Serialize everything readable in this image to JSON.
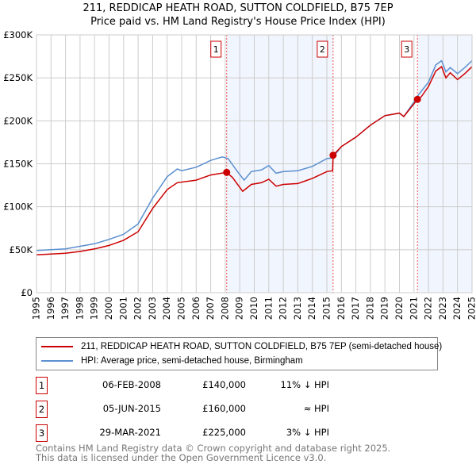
{
  "title": "211, REDDICAP HEATH ROAD, SUTTON COLDFIELD, B75 7EP",
  "subtitle": "Price paid vs. HM Land Registry's House Price Index (HPI)",
  "chart_data": {
    "type": "line",
    "xlim": [
      1995,
      2025
    ],
    "ylim": [
      0,
      300000
    ],
    "x_ticks": [
      "1995",
      "1996",
      "1997",
      "1998",
      "1999",
      "2000",
      "2001",
      "2002",
      "2003",
      "2004",
      "2005",
      "2006",
      "2007",
      "2008",
      "2009",
      "2010",
      "2011",
      "2012",
      "2013",
      "2014",
      "2015",
      "2016",
      "2017",
      "2018",
      "2019",
      "2020",
      "2021",
      "2022",
      "2023",
      "2024",
      "2025"
    ],
    "y_ticks": [
      {
        "v": 0,
        "label": "£0"
      },
      {
        "v": 50000,
        "label": "£50K"
      },
      {
        "v": 100000,
        "label": "£100K"
      },
      {
        "v": 150000,
        "label": "£150K"
      },
      {
        "v": 200000,
        "label": "£200K"
      },
      {
        "v": 250000,
        "label": "£250K"
      },
      {
        "v": 300000,
        "label": "£300K"
      }
    ],
    "grid": true,
    "series": [
      {
        "name": "211, REDDICAP HEATH ROAD, SUTTON COLDFIELD, B75 7EP (semi-detached house)",
        "color": "#cc0000",
        "x": [
          1995,
          1996,
          1997,
          1998,
          1999,
          2000,
          2001,
          2002,
          2003,
          2004,
          2004.7,
          2006,
          2007,
          2008.1,
          2008.5,
          2009.2,
          2009.8,
          2010.5,
          2011,
          2011.5,
          2012,
          2013,
          2014,
          2015,
          2015.4,
          2015.43,
          2016,
          2017,
          2018,
          2019,
          2020,
          2020.3,
          2021.24,
          2021.5,
          2022,
          2022.5,
          2022.9,
          2023.2,
          2023.5,
          2024,
          2024.5,
          2025
        ],
        "y": [
          44000,
          45000,
          46000,
          48000,
          51000,
          55000,
          61000,
          71000,
          98000,
          120000,
          128000,
          131000,
          137000,
          140000,
          134000,
          118000,
          126000,
          128000,
          132000,
          124000,
          126000,
          127000,
          133000,
          141000,
          142000,
          160000,
          170000,
          181000,
          195000,
          206000,
          209000,
          205000,
          225000,
          228000,
          240000,
          258000,
          263000,
          250000,
          256000,
          248000,
          255000,
          263000
        ]
      },
      {
        "name": "HPI: Average price, semi-detached house, Birmingham",
        "color": "#5b8fd0",
        "x": [
          1995,
          1996,
          1997,
          1998,
          1999,
          2000,
          2001,
          2002,
          2003,
          2004,
          2004.7,
          2005,
          2006,
          2007,
          2007.8,
          2008.2,
          2008.8,
          2009.3,
          2009.8,
          2010.5,
          2011,
          2011.5,
          2012,
          2013,
          2014,
          2015,
          2015.4,
          2016,
          2017,
          2018,
          2019,
          2020,
          2020.3,
          2021,
          2021.3,
          2022,
          2022.5,
          2022.9,
          2023.2,
          2023.5,
          2024,
          2024.5,
          2025
        ],
        "y": [
          49000,
          50000,
          51000,
          54000,
          57000,
          62000,
          68000,
          80000,
          110000,
          135000,
          144000,
          142000,
          146000,
          154000,
          158000,
          156000,
          142000,
          131000,
          141000,
          143000,
          148000,
          139000,
          141000,
          142000,
          147000,
          156000,
          157000,
          170000,
          181000,
          195000,
          206000,
          209000,
          205000,
          222000,
          230000,
          245000,
          265000,
          270000,
          257000,
          262000,
          255000,
          262000,
          270000
        ]
      }
    ],
    "sales": [
      {
        "label": "1",
        "x": 2008.1,
        "y": 140000
      },
      {
        "label": "2",
        "x": 2015.43,
        "y": 160000
      },
      {
        "label": "3",
        "x": 2021.24,
        "y": 225000
      }
    ],
    "shaded": [
      [
        2008.1,
        2015.43
      ],
      [
        2021.24,
        2025
      ]
    ]
  },
  "legend": {
    "items": [
      "211, REDDICAP HEATH ROAD, SUTTON COLDFIELD, B75 7EP (semi-detached house)",
      "HPI: Average price, semi-detached house, Birmingham"
    ]
  },
  "transactions": [
    {
      "num": "1",
      "date": "06-FEB-2008",
      "price": "£140,000",
      "rel": "11% ↓ HPI"
    },
    {
      "num": "2",
      "date": "05-JUN-2015",
      "price": "£160,000",
      "rel": "≈ HPI"
    },
    {
      "num": "3",
      "date": "29-MAR-2021",
      "price": "£225,000",
      "rel": "3% ↓ HPI"
    }
  ],
  "footer": {
    "line1": "Contains HM Land Registry data © Crown copyright and database right 2025.",
    "line2": "This data is licensed under the Open Government Licence v3.0."
  }
}
